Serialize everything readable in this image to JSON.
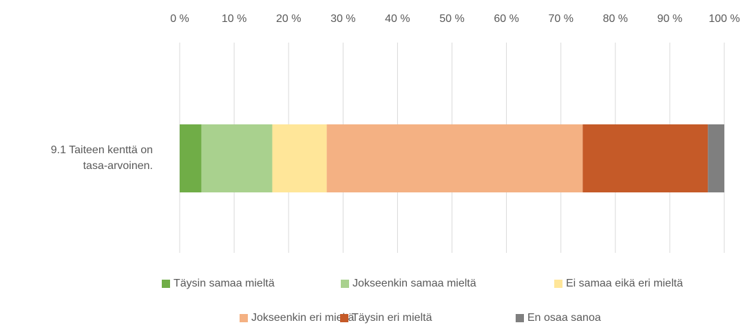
{
  "chart_data": {
    "type": "stacked-bar-horizontal",
    "categories": [
      "9.1 Taiteen kenttä on tasa-arvoinen."
    ],
    "series": [
      {
        "name": "Täysin samaa mieltä",
        "color": "#70ad47",
        "values": [
          4
        ]
      },
      {
        "name": "Jokseenkin samaa mieltä",
        "color": "#a9d18e",
        "values": [
          13
        ]
      },
      {
        "name": "Ei samaa eikä eri mieltä",
        "color": "#ffe699",
        "values": [
          10
        ]
      },
      {
        "name": "Jokseenkin eri mieltä",
        "color": "#f4b183",
        "values": [
          47
        ]
      },
      {
        "name": "Täysin eri mieltä",
        "color": "#c55a28",
        "values": [
          23
        ]
      },
      {
        "name": "En osaa sanoa",
        "color": "#7f7f7f",
        "values": [
          3
        ]
      }
    ],
    "xlim": [
      0,
      100
    ],
    "xticks": [
      {
        "value": 0,
        "label": "0 %"
      },
      {
        "value": 10,
        "label": "10 %"
      },
      {
        "value": 20,
        "label": "20 %"
      },
      {
        "value": 30,
        "label": "30 %"
      },
      {
        "value": 40,
        "label": "40 %"
      },
      {
        "value": 50,
        "label": "50 %"
      },
      {
        "value": 60,
        "label": "60 %"
      },
      {
        "value": 70,
        "label": "70 %"
      },
      {
        "value": 80,
        "label": "80 %"
      },
      {
        "value": 90,
        "label": "90 %"
      },
      {
        "value": 100,
        "label": "100 %"
      }
    ],
    "grid": true,
    "legend": "bottom"
  }
}
